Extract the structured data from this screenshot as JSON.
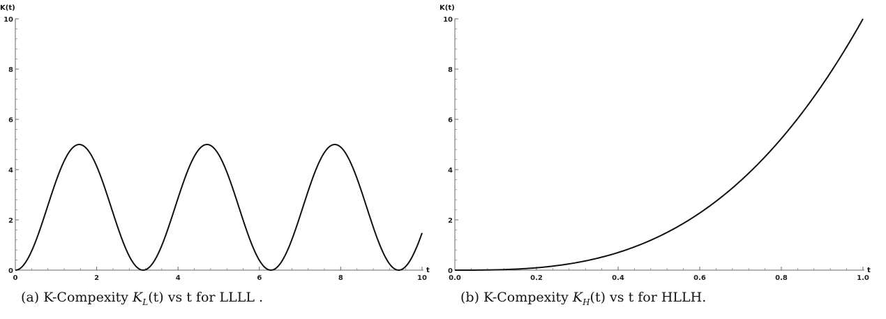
{
  "chart_data": [
    {
      "type": "line",
      "title": "",
      "xlabel": "t",
      "ylabel": "K(t)",
      "xlim": [
        0,
        10
      ],
      "ylim": [
        0,
        10
      ],
      "x_ticks": [
        "0",
        "2",
        "4",
        "6",
        "8",
        "10"
      ],
      "y_ticks": [
        "0",
        "2",
        "4",
        "6",
        "8",
        "10"
      ],
      "grid": false,
      "line_color": "#111111",
      "series": [
        {
          "x": [
            0,
            0.5,
            1,
            1.5708,
            2,
            2.5,
            3,
            3.1416,
            3.5,
            4,
            4.7124,
            5,
            5.5,
            6,
            6.2832,
            6.5,
            7,
            7.854,
            8.5,
            9,
            9.4248,
            9.8,
            10
          ],
          "y": [
            0,
            1.15,
            3.54,
            5.0,
            4.13,
            1.79,
            0.1,
            0,
            0.63,
            2.86,
            5.0,
            4.6,
            2.5,
            0.39,
            0,
            0.23,
            2.08,
            5.0,
            3.2,
            0.85,
            0,
            0.69,
            1.48
          ]
        }
      ]
    },
    {
      "type": "line",
      "title": "",
      "xlabel": "t",
      "ylabel": "K(t)",
      "xlim": [
        0,
        1
      ],
      "ylim": [
        0,
        10
      ],
      "x_ticks": [
        "0.0",
        "0.2",
        "0.4",
        "0.6",
        "0.8",
        "1.0"
      ],
      "y_ticks": [
        "0",
        "2",
        "4",
        "6",
        "8",
        "10"
      ],
      "grid": false,
      "line_color": "#111111",
      "series": [
        {
          "x": [
            0,
            0.05,
            0.1,
            0.2,
            0.3,
            0.4,
            0.5,
            0.6,
            0.7,
            0.8,
            0.9,
            1.0
          ],
          "y": [
            0,
            0.01,
            0.05,
            0.3,
            0.7,
            1.25,
            2.0,
            3.0,
            4.3,
            5.85,
            7.75,
            10.0
          ]
        }
      ]
    }
  ],
  "captions": [
    {
      "prefix": "(a) K-Compexity ",
      "symbol": "K",
      "subscript": "L",
      "arg": "(t)",
      "suffix": " vs t for LLLL ."
    },
    {
      "prefix": "(b) K-Compexity ",
      "symbol": "K",
      "subscript": "H",
      "arg": "(t)",
      "suffix": " vs t for HLLH."
    }
  ]
}
